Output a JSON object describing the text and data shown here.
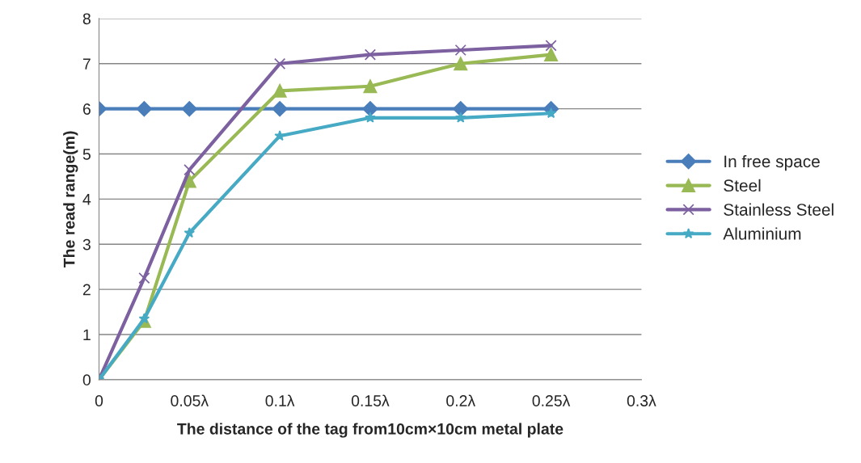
{
  "chart_data": {
    "type": "line",
    "xlabel": "The distance of the tag from10cm×10cm metal plate",
    "ylabel": "The read range(m)",
    "x": [
      0,
      0.025,
      0.05,
      0.1,
      0.15,
      0.2,
      0.25
    ],
    "series": [
      {
        "name": "In free space",
        "color": "#4a7ebb",
        "marker": "diamond",
        "values": [
          6,
          6,
          6,
          6,
          6,
          6,
          6
        ]
      },
      {
        "name": "Steel",
        "color": "#98b954",
        "marker": "triangle",
        "values": [
          0,
          1.3,
          4.4,
          6.4,
          6.5,
          7.0,
          7.2
        ]
      },
      {
        "name": "Stainless Steel",
        "color": "#7d60a0",
        "marker": "cross",
        "values": [
          0,
          2.25,
          4.65,
          7.0,
          7.2,
          7.3,
          7.4
        ]
      },
      {
        "name": "Aluminium",
        "color": "#46aac5",
        "marker": "star",
        "values": [
          0,
          1.35,
          3.25,
          5.4,
          5.8,
          5.8,
          5.9
        ]
      }
    ],
    "xlim": [
      0,
      0.3
    ],
    "xticks": [
      0,
      {
        "value": 0.05,
        "label": "0.05λ"
      },
      {
        "value": 0.1,
        "label": "0.1λ"
      },
      {
        "value": 0.15,
        "label": "0.15λ"
      },
      {
        "value": 0.2,
        "label": "0.2λ"
      },
      {
        "value": 0.25,
        "label": "0.25λ"
      },
      {
        "value": 0.3,
        "label": "0.3λ"
      }
    ],
    "ylim": [
      0,
      8
    ],
    "yticks": [
      0,
      1,
      2,
      3,
      4,
      5,
      6,
      7,
      8
    ],
    "grid": "y",
    "legend": "right",
    "line_style": "solid"
  }
}
